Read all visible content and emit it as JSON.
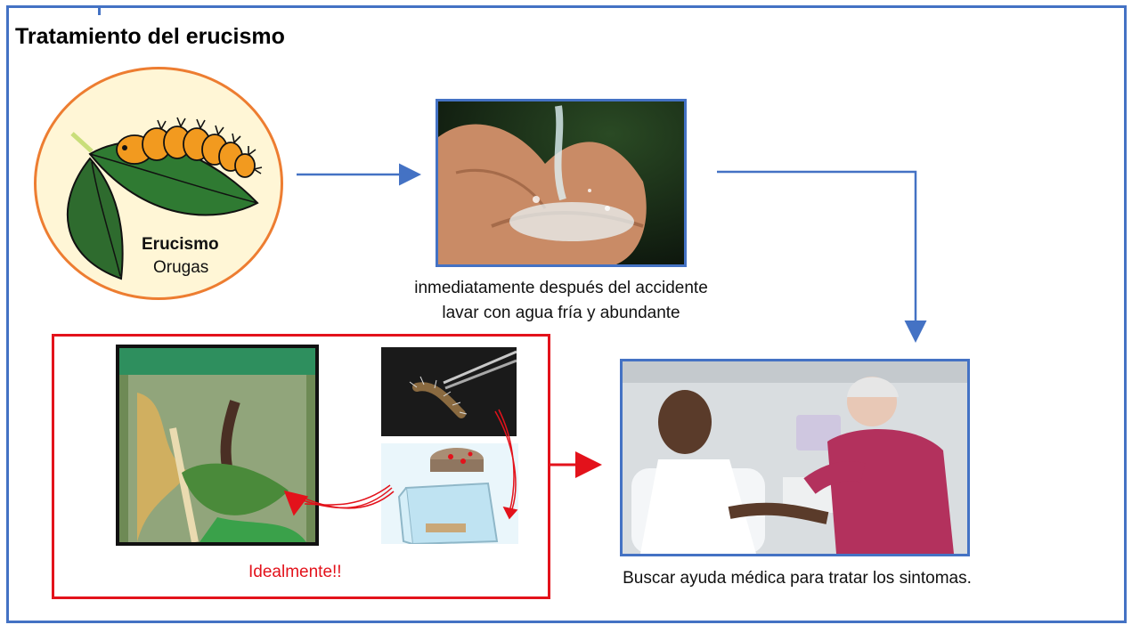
{
  "title": "Tratamiento del erucismo",
  "circle": {
    "main_label": "Erucismo",
    "sub_label": "Orugas"
  },
  "step_wash": {
    "line1": "inmediatamente después del accidente",
    "line2": "lavar con agua fría y abundante"
  },
  "step_doctor": {
    "caption": "Buscar ayuda médica para tratar los sintomas."
  },
  "keep_sample": {
    "caption": "Idealmente!!"
  },
  "colors": {
    "frame": "#4472c4",
    "circle_border": "#ed7d31",
    "circle_fill": "#fff6d6",
    "highlight_red": "#e3121b"
  }
}
